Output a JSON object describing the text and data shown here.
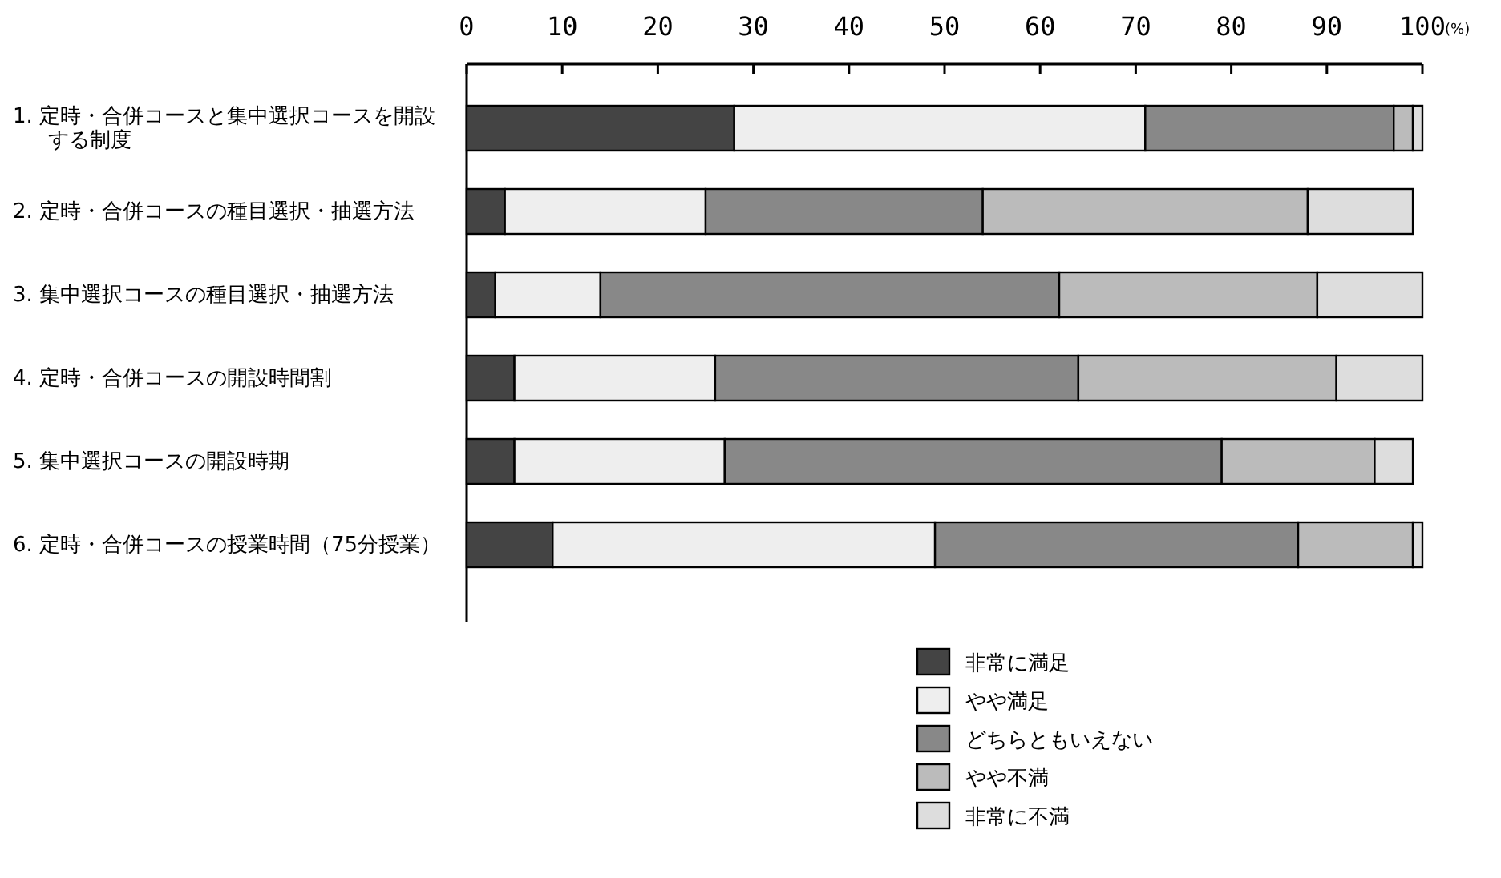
{
  "chart_data": {
    "type": "bar",
    "orientation": "horizontal",
    "stacked": true,
    "categories": [
      "1. 定時・合併コースと集中選択コースを開設する制度",
      "2. 定時・合併コースの種目選択・抽選方法",
      "3. 集中選択コースの種目選択・抽選方法",
      "4. 定時・合併コースの開設時間割",
      "5. 集中選択コースの開設時期",
      "6. 定時・合併コースの授業時間（75分授業）"
    ],
    "xlabel": "(%)",
    "xlim": [
      0,
      100
    ],
    "xticks": [
      0,
      10,
      20,
      30,
      40,
      50,
      60,
      70,
      80,
      90,
      100
    ],
    "legend": "bottom right",
    "grid": false,
    "series": [
      {
        "name": "非常に満足",
        "color": "#444444",
        "values": [
          28,
          4,
          3,
          5,
          5,
          9
        ]
      },
      {
        "name": "やや満足",
        "color": "#eeeeee",
        "values": [
          43,
          21,
          11,
          21,
          22,
          40
        ]
      },
      {
        "name": "どちらともいえない",
        "color": "#888888",
        "values": [
          26,
          29,
          48,
          38,
          52,
          38
        ]
      },
      {
        "name": "やや不満",
        "color": "#bbbbbb",
        "values": [
          2,
          34,
          27,
          27,
          16,
          12
        ]
      },
      {
        "name": "非常に不満",
        "color": "#dddddd",
        "values": [
          1,
          11,
          11,
          9,
          4,
          1
        ]
      }
    ]
  }
}
